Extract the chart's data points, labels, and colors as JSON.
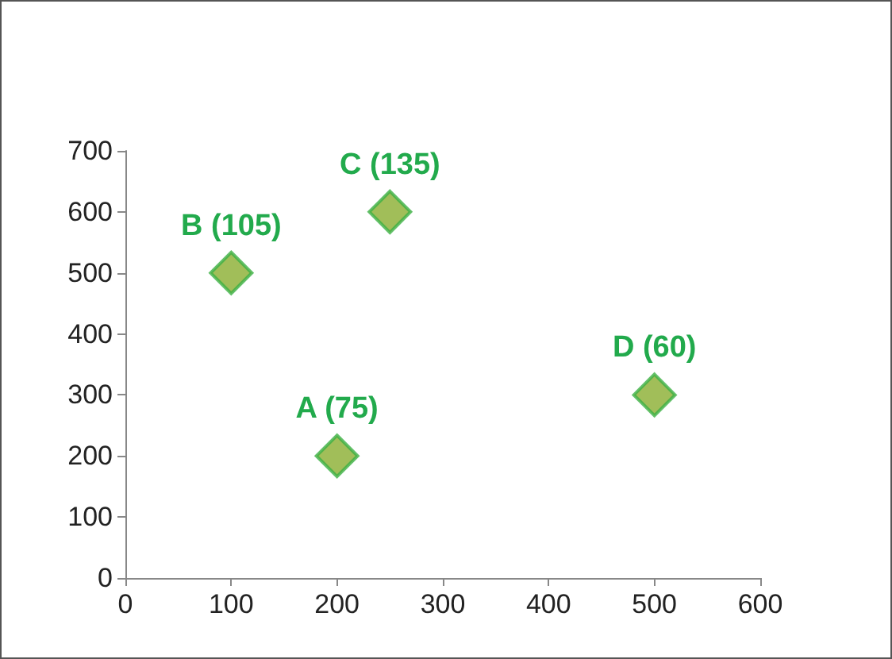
{
  "chart_data": {
    "type": "scatter",
    "x": [
      200,
      100,
      250,
      500
    ],
    "values": [
      200,
      500,
      600,
      300
    ],
    "color": "#8aae2f",
    "marker": "diamond",
    "xlim": [
      0,
      600
    ],
    "xticks": [
      0,
      100,
      200,
      300,
      400,
      500,
      600
    ],
    "ylim": [
      0,
      700
    ],
    "yticks": [
      0,
      100,
      200,
      300,
      400,
      500,
      600,
      700
    ],
    "annotations": [
      {
        "text": "A (75)",
        "x": 200,
        "y": 200
      },
      {
        "text": "B (105)",
        "x": 100,
        "y": 500
      },
      {
        "text": "C (135)",
        "x": 250,
        "y": 600
      },
      {
        "text": "D (60)",
        "x": 500,
        "y": 300
      }
    ]
  }
}
